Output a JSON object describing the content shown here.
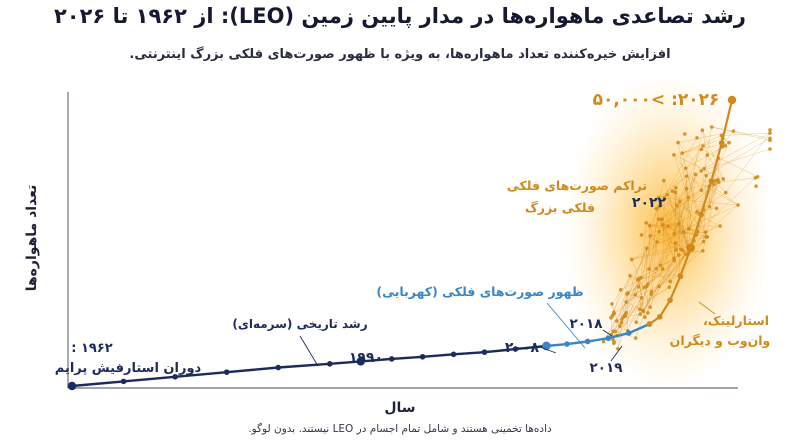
{
  "page": {
    "title": "رشد تصاعدی ماهواره‌ها در مدار پایین زمین (LEO): از ۱۹۶۲ تا ۲۰۲۶",
    "subtitle": "افزایش خیره‌کننده تعداد ماهواره‌ها، به ویژه با ظهور صورت‌های فلکی بزرگ اینترنتی.",
    "footnote": "داده‌ها تخمینی هستند و شامل تمام اجسام در LEO نیستند. بدون لوگو."
  },
  "colors": {
    "historic": "#1d2b5c",
    "early_constellation": "#3a86c8",
    "mega_constellation": "#d08a1c",
    "glow": "#ffb020"
  },
  "chart_data": {
    "type": "line",
    "title": "رشد تصاعدی ماهواره‌ها در مدار پایین زمین (LEO): از ۱۹۶۲ تا ۲۰۲۶",
    "xlabel": "سال",
    "ylabel": "تعداد ماهواره‌ها",
    "grid": false,
    "legend": "none",
    "series": [
      {
        "name": "رشد تاریخی (سرمه‌ای)",
        "x": [
          1962,
          1967,
          1972,
          1977,
          1982,
          1987,
          1990,
          1993,
          1996,
          1999,
          2002,
          2005,
          2008
        ],
        "y": [
          0,
          150,
          300,
          450,
          600,
          720,
          800,
          880,
          950,
          1030,
          1100,
          1200,
          1300
        ]
      },
      {
        "name": "ظهور صورت‌های فلکی (کهربایی)",
        "x": [
          2008,
          2010,
          2012,
          2014,
          2016,
          2018
        ],
        "y": [
          1300,
          1450,
          1650,
          1900,
          2300,
          3000
        ]
      },
      {
        "name": "تراکم صورت‌های فلکی بزرگ",
        "x": [
          2018,
          2019,
          2020,
          2021,
          2022,
          2023,
          2024,
          2025,
          2026
        ],
        "y": [
          3000,
          4500,
          8000,
          13000,
          19000,
          26000,
          33000,
          41000,
          50000
        ]
      }
    ],
    "annotations": [
      {
        "id": "start",
        "text_line1": "۱۹۶۲ :",
        "text_line2": "دوران استارفیش پرایم",
        "x": 1962,
        "y": 0
      },
      {
        "id": "historic",
        "text": "رشد تاریخی (سرمه‌ای)",
        "x": 1985,
        "y": 700
      },
      {
        "id": "y1990",
        "text": "۱۹۹۰",
        "x": 1990,
        "y": 800
      },
      {
        "id": "y2008",
        "text": "۲۰۰۸",
        "x": 2008,
        "y": 1300
      },
      {
        "id": "constellation",
        "text": "ظهور صورت‌های فلکی (کهربایی)",
        "x": 2014,
        "y": 1900
      },
      {
        "id": "y2018",
        "text": "۲۰۱۸",
        "x": 2018,
        "y": 3000
      },
      {
        "id": "y2019",
        "text": "۲۰۱۹",
        "x": 2019,
        "y": 4500
      },
      {
        "id": "mega",
        "text_line1": "تراکم صورت‌های فلکی",
        "text_line2": "فلکی بزرگ",
        "x": 2021,
        "y": 13000
      },
      {
        "id": "y2022",
        "text": "۲۰۲۲",
        "x": 2022,
        "y": 19000
      },
      {
        "id": "operators",
        "text_line1": "استارلینک،",
        "text_line2": "وان‌وب و دیگران",
        "x": 2025,
        "y": 10000
      },
      {
        "id": "final",
        "text": "۲۰۲۶: >۵۰,۰۰۰",
        "x": 2026,
        "y": 50000
      }
    ]
  }
}
